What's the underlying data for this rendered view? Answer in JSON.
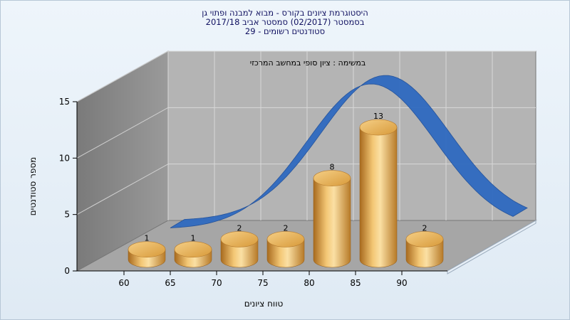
{
  "chart_data": {
    "type": "bar",
    "title_lines": [
      "היסטוגרמת ציונים בקורס - מבוא למבנה ופתוי גן",
      "בסמסטר  (02/2017)  סמסטר אביב 2017/18",
      "סטודנטים רשומים - 29"
    ],
    "annotation": "במשימה : ציון סופי במחשב המרכזי",
    "xlabel": "טווח ציונים",
    "ylabel": "מספר סטודנטים",
    "categories": [
      "60",
      "65",
      "70",
      "75",
      "80",
      "85",
      "90"
    ],
    "values": [
      1,
      1,
      2,
      2,
      8,
      13,
      2
    ],
    "ylim": [
      0,
      15
    ],
    "yticks": [
      "0",
      "5",
      "10",
      "15"
    ],
    "grid": true,
    "curve": "normal-distribution",
    "colors": {
      "bar": "#e0a040",
      "curve": "#2f6ac0",
      "back_wall": "#b4b4b4",
      "side_wall": "#8a8a8a",
      "floor": "#a6a6a6"
    }
  }
}
